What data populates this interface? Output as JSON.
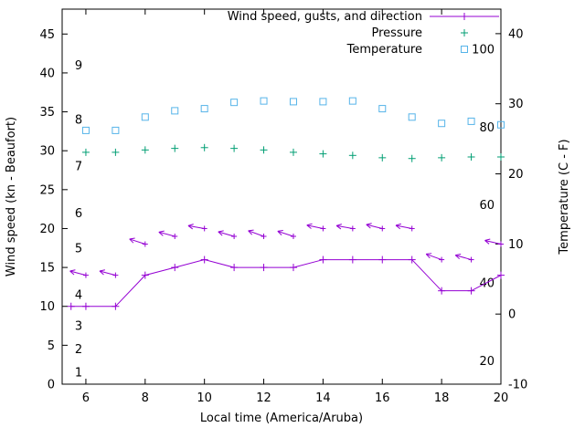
{
  "figure": {
    "background": "#ffffff",
    "foreground": "#000000"
  },
  "chart_data": {
    "type": "line",
    "title": "",
    "xlabel": "Local time (America/Aruba)",
    "ylabel_left": "Wind speed (kn - Beaufort)",
    "ylabel_right": "Temperature (C - F)",
    "xlim": [
      5.2,
      20
    ],
    "ylim_left": [
      0,
      48.2
    ],
    "ylim_right": [
      -10,
      43.5
    ],
    "x_ticks": [
      6,
      8,
      10,
      12,
      14,
      16,
      18,
      20
    ],
    "y_ticks_left": [
      0,
      5,
      10,
      15,
      20,
      25,
      30,
      35,
      40,
      45
    ],
    "y_ticks_right": [
      -10,
      0,
      10,
      20,
      30,
      40
    ],
    "grid": false,
    "beaufort_scale": {
      "labels": [
        "1",
        "2",
        "3",
        "4",
        "5",
        "6",
        "7",
        "8",
        "9"
      ],
      "knots": [
        1.5,
        4.5,
        7.5,
        11.5,
        17.5,
        22,
        28,
        34,
        41
      ]
    },
    "fahrenheit_scale": {
      "labels": [
        "20",
        "40",
        "60",
        "80",
        "100"
      ],
      "values_f": [
        20,
        40,
        60,
        80,
        100
      ]
    },
    "legend": {
      "position": "top-right-inside",
      "entries": [
        {
          "label": "Wind speed, gusts, and direction",
          "marker": "line-plus",
          "color": "#9400D3"
        },
        {
          "label": "Pressure",
          "marker": "plus",
          "color": "#009E73"
        },
        {
          "label": "Temperature",
          "marker": "square",
          "color": "#56B4E9"
        }
      ]
    },
    "series": [
      {
        "name": "Wind speed",
        "style": "linespoints",
        "marker": "plus",
        "color": "#9400D3",
        "axis": "left",
        "x": [
          5.5,
          6,
          7,
          8,
          9,
          10,
          11,
          12,
          13,
          14,
          15,
          16,
          17,
          18,
          19,
          20
        ],
        "y": [
          10,
          10,
          10,
          14,
          15,
          16,
          15,
          15,
          15,
          16,
          16,
          16,
          16,
          12,
          12,
          14
        ]
      },
      {
        "name": "Wind gusts and direction",
        "style": "vectors",
        "color": "#9400D3",
        "axis": "left",
        "x": [
          6,
          7,
          8,
          9,
          10,
          11,
          12,
          13,
          14,
          15,
          16,
          17,
          18,
          19,
          20
        ],
        "y": [
          14,
          14,
          18,
          19,
          20,
          19,
          19,
          19,
          20,
          20,
          20,
          20,
          16,
          16,
          18
        ],
        "direction_to_deg": [
          285,
          285,
          288,
          285,
          280,
          286,
          290,
          288,
          282,
          280,
          284,
          281,
          290,
          286,
          283
        ]
      },
      {
        "name": "Pressure",
        "style": "points",
        "marker": "plus",
        "color": "#009E73",
        "axis": "left",
        "x": [
          6,
          7,
          8,
          9,
          10,
          11,
          12,
          13,
          14,
          15,
          16,
          17,
          18,
          19,
          20
        ],
        "y": [
          29.8,
          29.8,
          30.1,
          30.3,
          30.4,
          30.3,
          30.1,
          29.8,
          29.6,
          29.4,
          29.1,
          29.0,
          29.1,
          29.2,
          29.2
        ]
      },
      {
        "name": "Temperature",
        "style": "points",
        "marker": "square",
        "color": "#56B4E9",
        "axis": "right",
        "x": [
          6,
          7,
          8,
          9,
          10,
          11,
          12,
          13,
          14,
          15,
          16,
          17,
          18,
          19,
          20
        ],
        "y": [
          26.2,
          26.2,
          28.1,
          29.0,
          29.3,
          30.2,
          30.4,
          30.3,
          30.3,
          30.4,
          29.3,
          28.1,
          27.2,
          27.5,
          27.0
        ]
      }
    ]
  }
}
